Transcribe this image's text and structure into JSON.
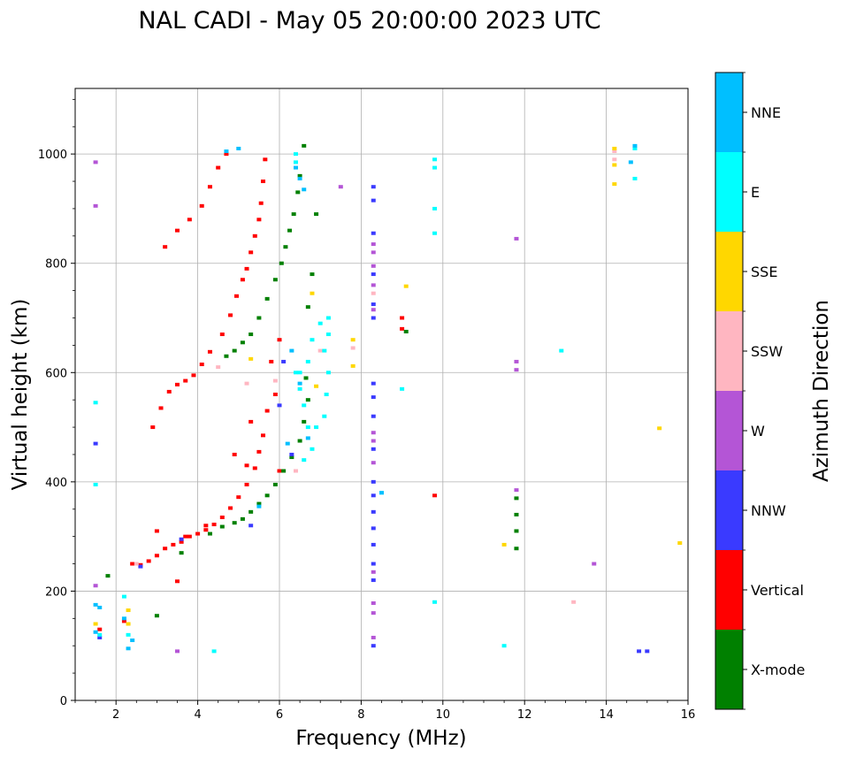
{
  "chart_data": {
    "type": "scatter",
    "title": "NAL CADI - May 05 20:00:00 2023 UTC",
    "xlabel": "Frequency (MHz)",
    "ylabel": "Virtual height (km)",
    "xlim": [
      1,
      16
    ],
    "ylim": [
      0,
      1120
    ],
    "xticks": [
      2,
      4,
      6,
      8,
      10,
      12,
      14,
      16
    ],
    "yticks": [
      0,
      200,
      400,
      600,
      800,
      1000
    ],
    "grid": true,
    "colorbar": {
      "label": "Azimuth Direction",
      "categories": [
        {
          "name": "X-mode",
          "color": "#008000"
        },
        {
          "name": "Vertical",
          "color": "#ff0000"
        },
        {
          "name": "NNW",
          "color": "#3a3aff"
        },
        {
          "name": "W",
          "color": "#b455d6"
        },
        {
          "name": "SSW",
          "color": "#ffb6c1"
        },
        {
          "name": "SSE",
          "color": "#ffd700"
        },
        {
          "name": "E",
          "color": "#00ffff"
        },
        {
          "name": "NNE",
          "color": "#00bfff"
        }
      ]
    },
    "series": [
      {
        "name": "Vertical",
        "cat": 1,
        "points": [
          [
            2.4,
            250
          ],
          [
            2.6,
            248
          ],
          [
            2.8,
            255
          ],
          [
            3.0,
            265
          ],
          [
            3.2,
            278
          ],
          [
            3.4,
            285
          ],
          [
            3.6,
            290
          ],
          [
            3.8,
            300
          ],
          [
            4.0,
            305
          ],
          [
            4.2,
            312
          ],
          [
            4.4,
            322
          ],
          [
            4.6,
            335
          ],
          [
            4.8,
            352
          ],
          [
            5.0,
            372
          ],
          [
            5.2,
            395
          ],
          [
            5.4,
            425
          ],
          [
            5.5,
            455
          ],
          [
            5.6,
            485
          ],
          [
            2.9,
            500
          ],
          [
            3.1,
            535
          ],
          [
            3.3,
            565
          ],
          [
            3.5,
            578
          ],
          [
            3.7,
            585
          ],
          [
            3.9,
            595
          ],
          [
            4.1,
            615
          ],
          [
            4.3,
            638
          ],
          [
            4.6,
            670
          ],
          [
            4.8,
            705
          ],
          [
            4.95,
            740
          ],
          [
            5.1,
            770
          ],
          [
            5.2,
            790
          ],
          [
            5.3,
            820
          ],
          [
            5.4,
            850
          ],
          [
            5.5,
            880
          ],
          [
            5.55,
            910
          ],
          [
            5.6,
            950
          ],
          [
            5.65,
            990
          ],
          [
            3.2,
            830
          ],
          [
            3.5,
            860
          ],
          [
            3.8,
            880
          ],
          [
            4.1,
            905
          ],
          [
            4.3,
            940
          ],
          [
            4.5,
            975
          ],
          [
            4.7,
            1000
          ],
          [
            3.0,
            310
          ],
          [
            3.5,
            218
          ],
          [
            3.7,
            300
          ],
          [
            4.2,
            320
          ],
          [
            4.9,
            450
          ],
          [
            5.3,
            510
          ],
          [
            5.8,
            620
          ],
          [
            6.0,
            660
          ],
          [
            6.0,
            420
          ],
          [
            5.9,
            560
          ],
          [
            5.7,
            530
          ],
          [
            5.2,
            430
          ],
          [
            9.0,
            700
          ],
          [
            9.0,
            680
          ],
          [
            9.8,
            375
          ],
          [
            1.6,
            130
          ],
          [
            2.2,
            145
          ]
        ]
      },
      {
        "name": "X-mode",
        "cat": 0,
        "points": [
          [
            4.3,
            305
          ],
          [
            4.6,
            318
          ],
          [
            4.9,
            325
          ],
          [
            5.1,
            332
          ],
          [
            5.3,
            345
          ],
          [
            5.5,
            360
          ],
          [
            5.7,
            375
          ],
          [
            5.9,
            395
          ],
          [
            6.1,
            420
          ],
          [
            6.3,
            445
          ],
          [
            6.5,
            475
          ],
          [
            6.6,
            510
          ],
          [
            6.7,
            550
          ],
          [
            6.65,
            590
          ],
          [
            4.7,
            630
          ],
          [
            4.9,
            640
          ],
          [
            5.1,
            655
          ],
          [
            5.3,
            670
          ],
          [
            5.5,
            700
          ],
          [
            5.7,
            735
          ],
          [
            5.9,
            770
          ],
          [
            6.05,
            800
          ],
          [
            6.15,
            830
          ],
          [
            6.25,
            860
          ],
          [
            6.35,
            890
          ],
          [
            6.45,
            930
          ],
          [
            6.6,
            1015
          ],
          [
            6.5,
            960
          ],
          [
            6.9,
            890
          ],
          [
            6.7,
            720
          ],
          [
            6.8,
            780
          ],
          [
            9.1,
            675
          ],
          [
            11.8,
            370
          ],
          [
            11.8,
            340
          ],
          [
            11.8,
            310
          ],
          [
            11.8,
            278
          ],
          [
            1.8,
            228
          ],
          [
            3.0,
            155
          ],
          [
            3.6,
            270
          ]
        ]
      },
      {
        "name": "NNW",
        "cat": 2,
        "points": [
          [
            8.3,
            100
          ],
          [
            8.3,
            220
          ],
          [
            8.3,
            250
          ],
          [
            8.3,
            285
          ],
          [
            8.3,
            315
          ],
          [
            8.3,
            345
          ],
          [
            8.3,
            375
          ],
          [
            8.3,
            400
          ],
          [
            8.3,
            460
          ],
          [
            8.3,
            520
          ],
          [
            8.3,
            555
          ],
          [
            8.3,
            580
          ],
          [
            8.3,
            700
          ],
          [
            8.3,
            725
          ],
          [
            8.3,
            780
          ],
          [
            8.3,
            855
          ],
          [
            8.3,
            940
          ],
          [
            8.3,
            915
          ],
          [
            14.8,
            90
          ],
          [
            15.0,
            90
          ],
          [
            1.5,
            470
          ],
          [
            6.1,
            620
          ],
          [
            6.0,
            540
          ],
          [
            6.3,
            450
          ],
          [
            5.3,
            320
          ],
          [
            2.6,
            245
          ],
          [
            3.6,
            295
          ],
          [
            1.6,
            115
          ]
        ]
      },
      {
        "name": "W",
        "cat": 3,
        "points": [
          [
            8.3,
            115
          ],
          [
            8.3,
            160
          ],
          [
            8.3,
            178
          ],
          [
            8.3,
            235
          ],
          [
            8.3,
            435
          ],
          [
            8.3,
            475
          ],
          [
            8.3,
            490
          ],
          [
            8.3,
            715
          ],
          [
            8.3,
            760
          ],
          [
            8.3,
            795
          ],
          [
            8.3,
            820
          ],
          [
            8.3,
            835
          ],
          [
            11.8,
            385
          ],
          [
            11.8,
            605
          ],
          [
            11.8,
            620
          ],
          [
            11.8,
            845
          ],
          [
            13.7,
            250
          ],
          [
            1.5,
            210
          ],
          [
            3.5,
            90
          ],
          [
            7.5,
            940
          ],
          [
            1.5,
            985
          ],
          [
            1.5,
            905
          ]
        ]
      },
      {
        "name": "SSW",
        "cat": 4,
        "points": [
          [
            13.2,
            180
          ],
          [
            8.3,
            745
          ],
          [
            5.9,
            585
          ],
          [
            6.4,
            420
          ],
          [
            2.5,
            250
          ],
          [
            4.5,
            610
          ],
          [
            5.2,
            580
          ],
          [
            14.2,
            990
          ],
          [
            14.2,
            1005
          ],
          [
            7.0,
            640
          ],
          [
            7.8,
            645
          ]
        ]
      },
      {
        "name": "SSE",
        "cat": 5,
        "points": [
          [
            9.1,
            758
          ],
          [
            11.5,
            285
          ],
          [
            15.8,
            288
          ],
          [
            14.2,
            945
          ],
          [
            14.2,
            980
          ],
          [
            14.2,
            1010
          ],
          [
            15.3,
            498
          ],
          [
            7.8,
            660
          ],
          [
            7.8,
            612
          ],
          [
            6.8,
            745
          ],
          [
            2.3,
            140
          ],
          [
            2.3,
            165
          ],
          [
            5.3,
            625
          ],
          [
            1.5,
            140
          ],
          [
            6.9,
            575
          ]
        ]
      },
      {
        "name": "E",
        "cat": 6,
        "points": [
          [
            6.4,
            600
          ],
          [
            6.5,
            570
          ],
          [
            6.6,
            540
          ],
          [
            6.7,
            500
          ],
          [
            6.8,
            460
          ],
          [
            6.6,
            440
          ],
          [
            7.1,
            520
          ],
          [
            7.15,
            560
          ],
          [
            7.2,
            600
          ],
          [
            7.1,
            640
          ],
          [
            7.2,
            670
          ],
          [
            7.2,
            700
          ],
          [
            7.0,
            690
          ],
          [
            6.7,
            620
          ],
          [
            8.5,
            380
          ],
          [
            9.0,
            570
          ],
          [
            9.8,
            180
          ],
          [
            9.8,
            855
          ],
          [
            9.8,
            900
          ],
          [
            9.8,
            975
          ],
          [
            9.8,
            990
          ],
          [
            12.9,
            640
          ],
          [
            11.5,
            100
          ],
          [
            14.7,
            955
          ],
          [
            14.7,
            1010
          ],
          [
            6.4,
            985
          ],
          [
            6.4,
            1000
          ],
          [
            6.8,
            660
          ],
          [
            2.3,
            120
          ],
          [
            2.2,
            190
          ],
          [
            1.5,
            395
          ],
          [
            1.5,
            545
          ],
          [
            4.4,
            90
          ],
          [
            6.5,
            600
          ],
          [
            6.9,
            500
          ],
          [
            1.6,
            120
          ]
        ]
      },
      {
        "name": "NNE",
        "cat": 7,
        "points": [
          [
            6.4,
            975
          ],
          [
            6.5,
            955
          ],
          [
            6.6,
            935
          ],
          [
            6.3,
            640
          ],
          [
            6.5,
            580
          ],
          [
            6.7,
            480
          ],
          [
            4.7,
            1005
          ],
          [
            5.0,
            1010
          ],
          [
            14.7,
            1015
          ],
          [
            14.6,
            985
          ],
          [
            2.2,
            150
          ],
          [
            2.4,
            110
          ],
          [
            1.6,
            170
          ],
          [
            1.5,
            125
          ],
          [
            2.3,
            95
          ],
          [
            5.5,
            355
          ],
          [
            6.2,
            470
          ],
          [
            8.5,
            380
          ],
          [
            1.5,
            175
          ]
        ]
      }
    ]
  }
}
